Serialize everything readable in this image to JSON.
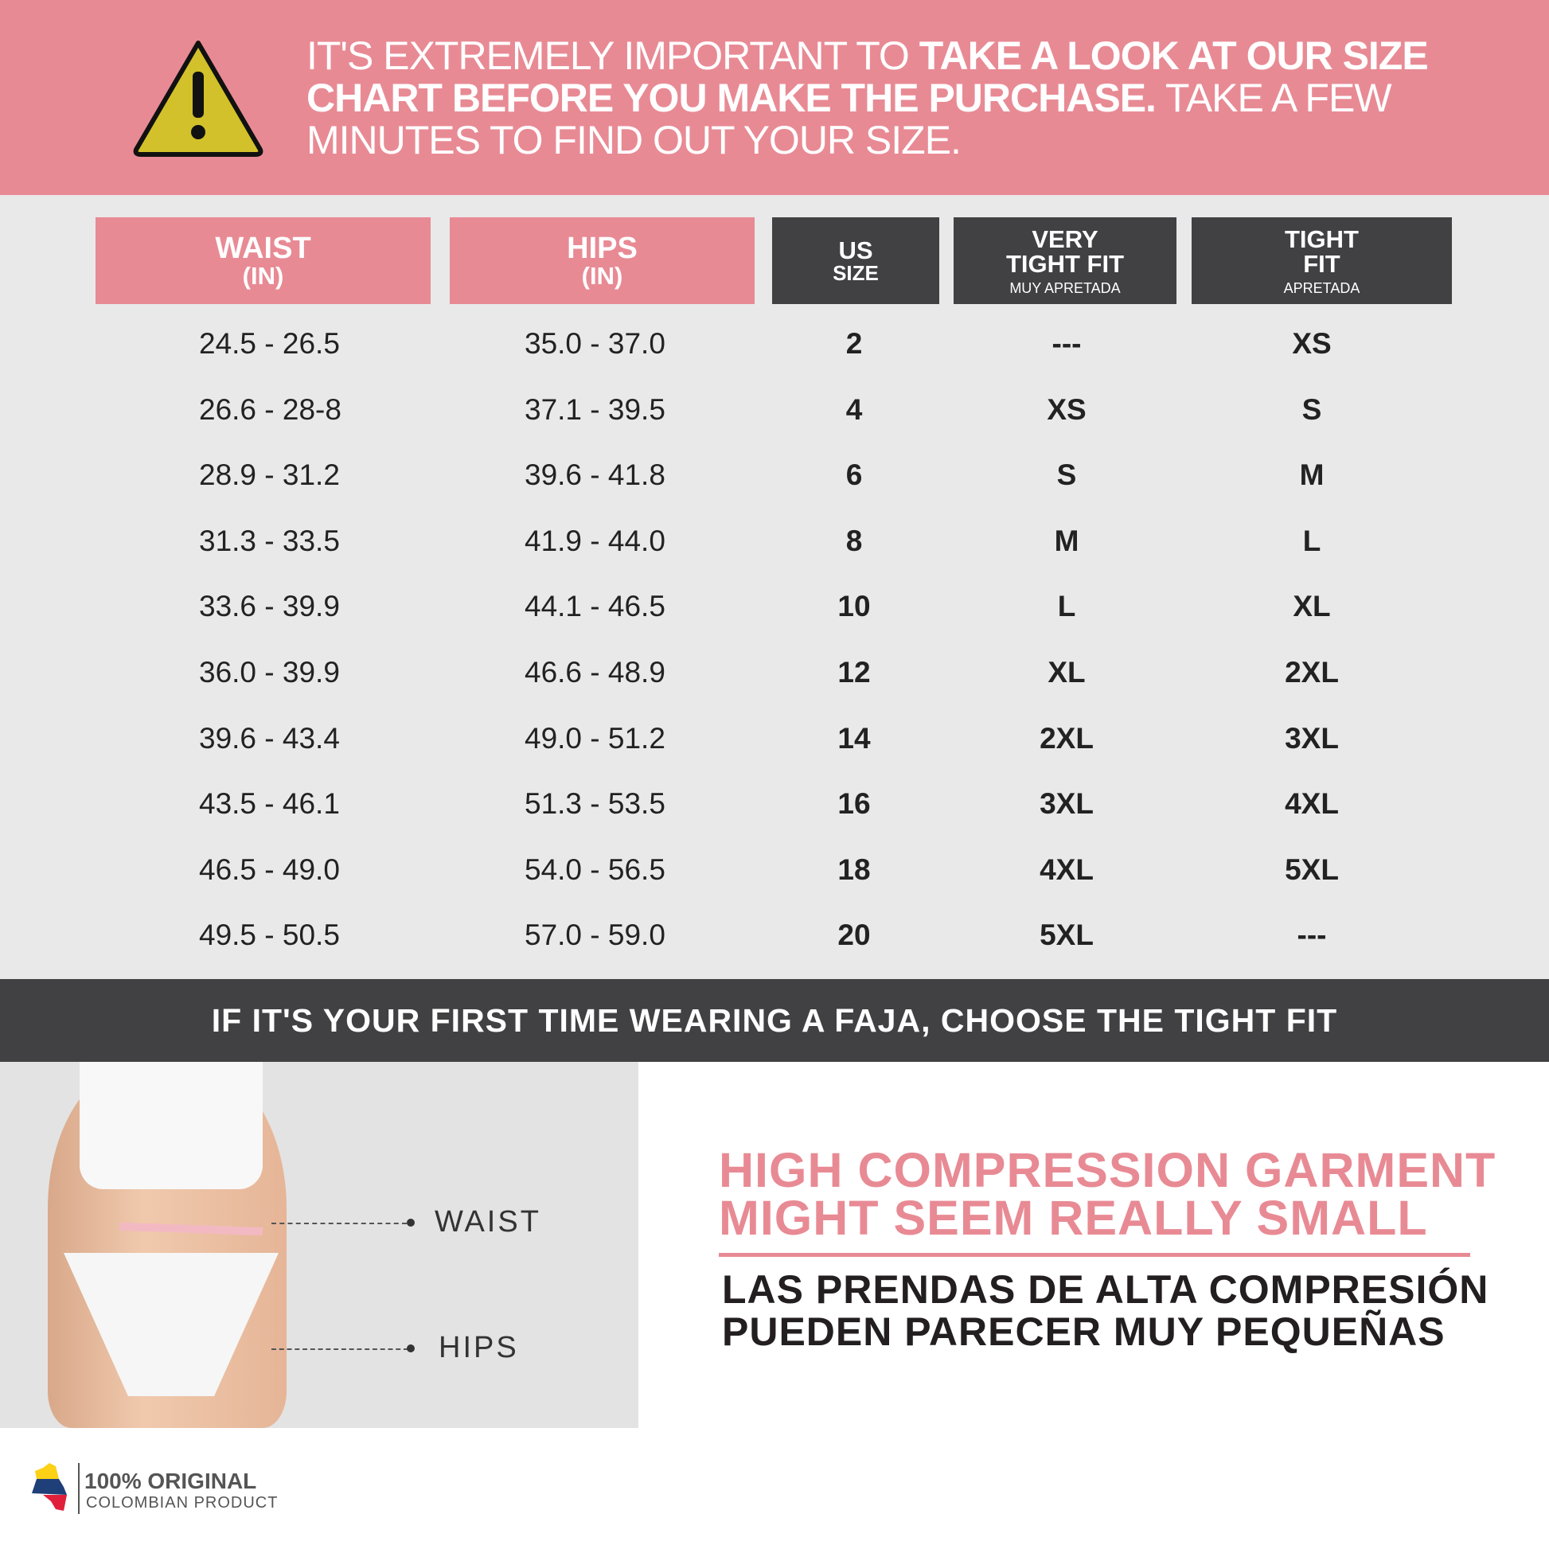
{
  "banner": {
    "text_pre": "IT'S EXTREMELY IMPORTANT TO ",
    "text_bold": "TAKE A LOOK AT OUR SIZE CHART BEFORE YOU MAKE THE PURCHASE.",
    "text_post": " TAKE A FEW MINUTES TO FIND OUT YOUR SIZE.",
    "icon": "warning-triangle-icon"
  },
  "headers": {
    "waist": {
      "title": "WAIST",
      "unit": "(IN)"
    },
    "hips": {
      "title": "HIPS",
      "unit": "(IN)"
    },
    "us": {
      "line1": "US",
      "line2": "SIZE"
    },
    "very": {
      "line1": "VERY",
      "line2": "TIGHT FIT",
      "sub": "MUY APRETADA"
    },
    "tight": {
      "line1": "TIGHT",
      "line2": "FIT",
      "sub": "APRETADA"
    }
  },
  "rows": [
    [
      "24.5 - 26.5",
      "35.0 - 37.0",
      "2",
      "---",
      "XS"
    ],
    [
      "26.6 - 28-8",
      "37.1 - 39.5",
      "4",
      "XS",
      "S"
    ],
    [
      "28.9 - 31.2",
      "39.6 - 41.8",
      "6",
      "S",
      "M"
    ],
    [
      "31.3 - 33.5",
      "41.9 - 44.0",
      "8",
      "M",
      "L"
    ],
    [
      "33.6 - 39.9",
      "44.1 - 46.5",
      "10",
      "L",
      "XL"
    ],
    [
      "36.0 - 39.9",
      "46.6 - 48.9",
      "12",
      "XL",
      "2XL"
    ],
    [
      "39.6 - 43.4",
      "49.0 - 51.2",
      "14",
      "2XL",
      "3XL"
    ],
    [
      "43.5 - 46.1",
      "51.3 - 53.5",
      "16",
      "3XL",
      "4XL"
    ],
    [
      "46.5 - 49.0",
      "54.0 - 56.5",
      "18",
      "4XL",
      "5XL"
    ],
    [
      "49.5 - 50.5",
      "57.0 - 59.0",
      "20",
      "5XL",
      "---"
    ]
  ],
  "band": "IF IT'S YOUR FIRST TIME WEARING A FAJA, CHOOSE THE TIGHT FIT",
  "photo": {
    "waist_label": "WAIST",
    "hips_label": "HIPS"
  },
  "notice": {
    "en_line1": "HIGH COMPRESSION GARMENT",
    "en_line2": "MIGHT SEEM REALLY SMALL",
    "es_line1": "LAS PRENDAS DE ALTA COMPRESIÓN",
    "es_line2": "PUEDEN PARECER MUY PEQUEÑAS"
  },
  "logo": {
    "line1": "100% ORIGINAL",
    "line2": "COLOMBIAN PRODUCT"
  },
  "colors": {
    "pink": "#e88a94",
    "dark": "#414042",
    "background": "#e9e9e9"
  }
}
